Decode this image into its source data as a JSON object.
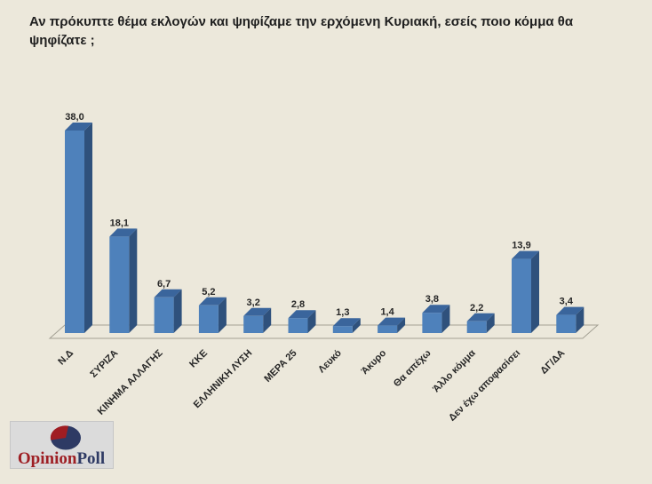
{
  "title": "Αν πρόκυπτε θέμα εκλογών και ψηφίζαμε την ερχόμενη Κυριακή, εσείς ποιο κόμμα θα ψηφίζατε ;",
  "chart_data": {
    "type": "bar",
    "style": "3d-column",
    "title": "Αν πρόκυπτε θέμα εκλογών και ψηφίζαμε την ερχόμενη Κυριακή, εσείς ποιο κόμμα θα ψηφίζατε ;",
    "categories": [
      "Ν.Δ",
      "ΣΥΡΙΖΑ",
      "ΚΙΝΗΜΑ ΑΛΛΑΓΗΣ",
      "ΚΚΕ",
      "ΕΛΛΗΝΙΚΗ ΛΥΣΗ",
      "ΜΕΡΑ 25",
      "Λευκό",
      "Άκυρο",
      "Θα απέχω",
      "Άλλο κόμμα",
      "Δεν έχω αποφασίσει",
      "ΔΓ/ΔΑ"
    ],
    "values": [
      38.0,
      18.1,
      6.7,
      5.2,
      3.2,
      2.8,
      1.3,
      1.4,
      3.8,
      2.2,
      13.9,
      3.4
    ],
    "value_labels": [
      "38,0",
      "18,1",
      "6,7",
      "5,2",
      "3,2",
      "2,8",
      "1,3",
      "1,4",
      "3,8",
      "2,2",
      "13,9",
      "3,4"
    ],
    "xlabel": "",
    "ylabel": "",
    "unit": "percent",
    "ylim": [
      0,
      40
    ],
    "grid": false,
    "axes_visible": false,
    "legend": null,
    "colors": {
      "bar_front": "#4e81bb",
      "bar_side": "#2f517c",
      "bar_top": "#3a659c",
      "floor_stroke": "#a3a093"
    }
  },
  "logo": {
    "text_primary": "Opinion",
    "text_secondary": "Poll",
    "color_primary": "#9e1f24",
    "color_secondary": "#2e3a64",
    "icon": "pie-icon"
  },
  "colors": {
    "background": "#ece8db",
    "panel": "#dbdbdb",
    "text": "#1f1f1f"
  }
}
